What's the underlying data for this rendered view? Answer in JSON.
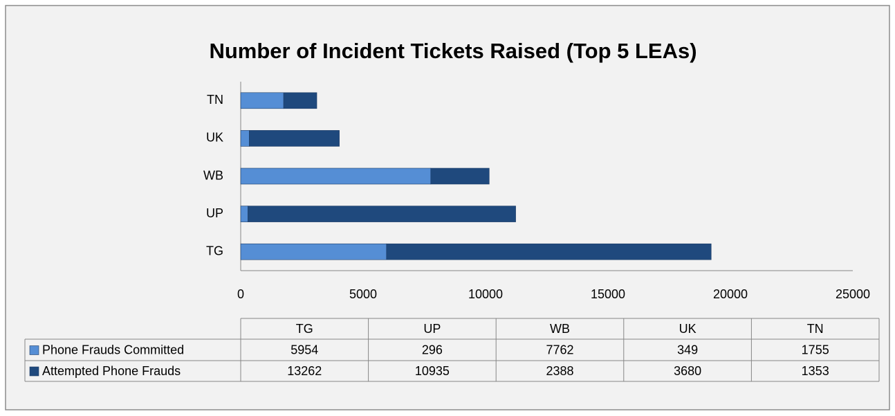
{
  "chart_data": {
    "type": "stacked-bar-horizontal",
    "title": "Number of Incident Tickets Raised (Top 5 LEAs)",
    "categories": [
      "TG",
      "UP",
      "WB",
      "UK",
      "TN"
    ],
    "series": [
      {
        "name": "Phone Frauds Committed",
        "color": "#558ed5",
        "values": [
          5954,
          296,
          7762,
          349,
          1755
        ]
      },
      {
        "name": "Attempted Phone Frauds",
        "color": "#1f497d",
        "values": [
          13262,
          10935,
          2388,
          3680,
          1353
        ]
      }
    ],
    "xlim": [
      0,
      25000
    ],
    "xticks": [
      0,
      5000,
      10000,
      15000,
      20000,
      25000
    ],
    "grid": false,
    "legend": "table"
  }
}
